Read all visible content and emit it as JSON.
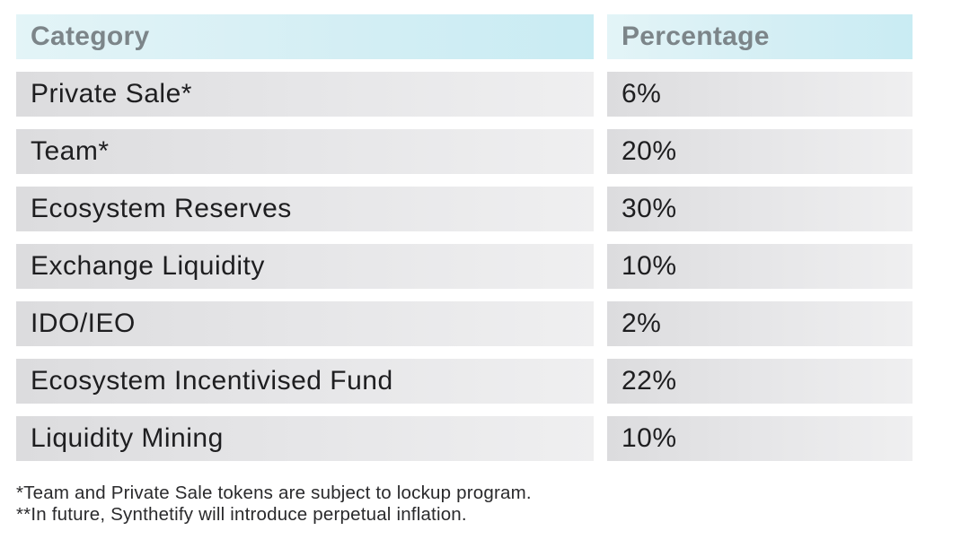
{
  "chart_data": {
    "type": "table",
    "columns": [
      "Category",
      "Percentage"
    ],
    "rows": [
      {
        "category": "Private Sale*",
        "percentage": "6%",
        "value": 6
      },
      {
        "category": "Team*",
        "percentage": "20%",
        "value": 20
      },
      {
        "category": "Ecosystem Reserves",
        "percentage": "30%",
        "value": 30
      },
      {
        "category": "Exchange Liquidity",
        "percentage": "10%",
        "value": 10
      },
      {
        "category": "IDO/IEO",
        "percentage": "2%",
        "value": 2
      },
      {
        "category": "Ecosystem Incentivised Fund",
        "percentage": "22%",
        "value": 22
      },
      {
        "category": "Liquidity Mining",
        "percentage": "10%",
        "value": 10
      }
    ],
    "footnotes": [
      "*Team and Private Sale tokens are subject to lockup program.",
      "**In future, Synthetify will introduce perpetual inflation."
    ]
  },
  "colors": {
    "header_bg": "#d3eef4",
    "header_text": "#7c8589",
    "row_bg": "#e6e6e8",
    "row_text": "#1e1e20"
  }
}
